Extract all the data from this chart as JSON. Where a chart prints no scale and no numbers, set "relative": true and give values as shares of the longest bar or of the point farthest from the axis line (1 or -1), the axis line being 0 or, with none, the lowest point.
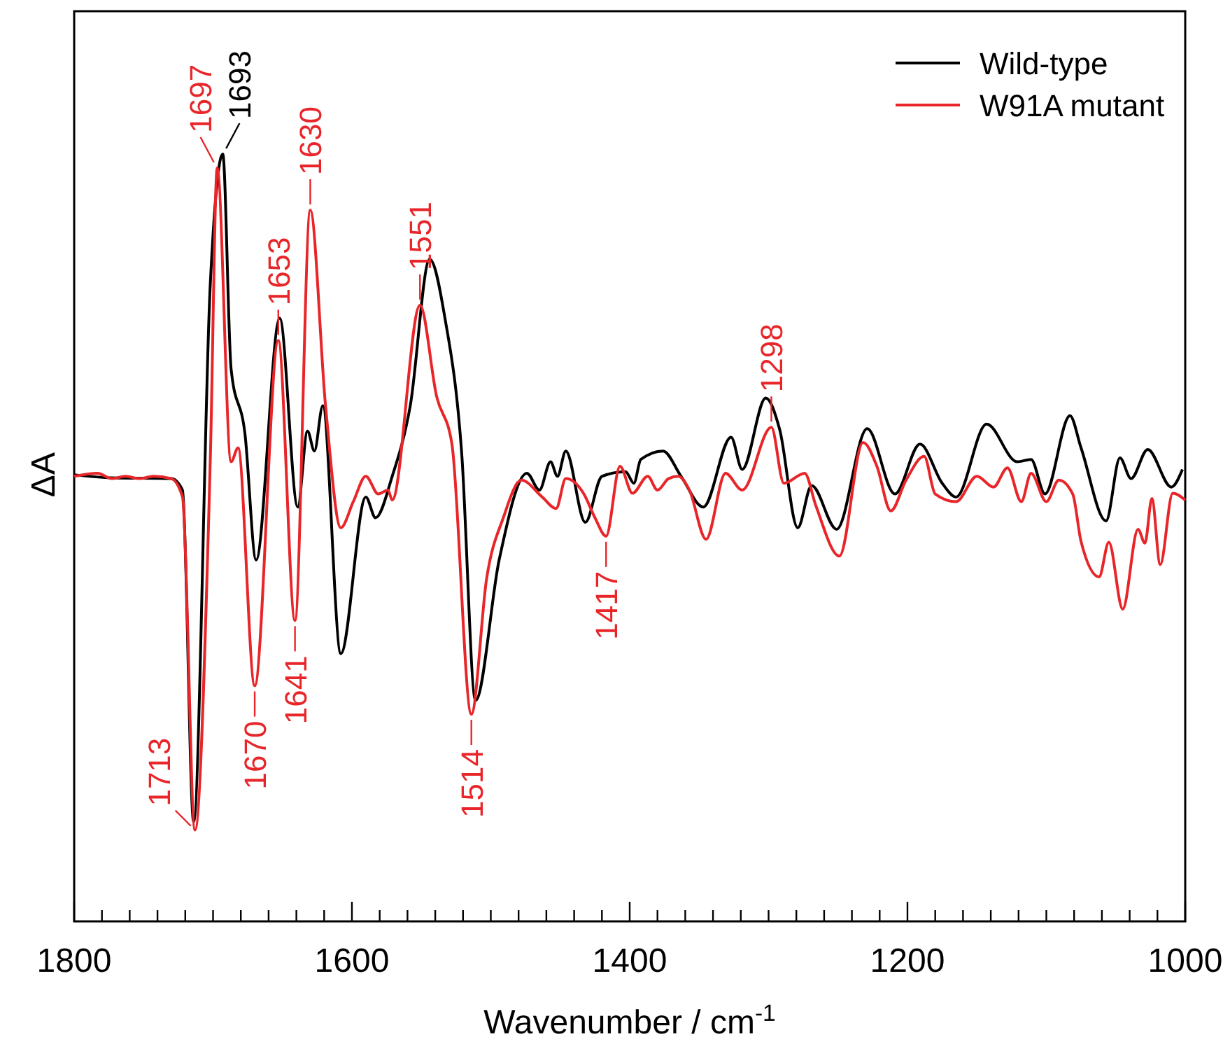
{
  "chart_data": {
    "type": "line",
    "relative": true,
    "xlabel": "Wavenumber / cm$^{-1}$",
    "ylabel": "ΔA",
    "legend": "top right",
    "xlim": [
      1800,
      1000
    ],
    "xticks": [
      1800,
      {
        "value": 1780,
        "label": null
      },
      {
        "value": 1760,
        "label": null
      },
      {
        "value": 1740,
        "label": null
      },
      {
        "value": 1720,
        "label": null
      },
      {
        "value": 1700,
        "label": null
      },
      {
        "value": 1680,
        "label": null
      },
      {
        "value": 1660,
        "label": null
      },
      {
        "value": 1640,
        "label": null
      },
      {
        "value": 1620,
        "label": null
      },
      1600,
      {
        "value": 1580,
        "label": null
      },
      {
        "value": 1560,
        "label": null
      },
      {
        "value": 1540,
        "label": null
      },
      {
        "value": 1520,
        "label": null
      },
      {
        "value": 1500,
        "label": null
      },
      {
        "value": 1480,
        "label": null
      },
      {
        "value": 1460,
        "label": null
      },
      {
        "value": 1440,
        "label": null
      },
      {
        "value": 1420,
        "label": null
      },
      1400,
      {
        "value": 1380,
        "label": null
      },
      {
        "value": 1360,
        "label": null
      },
      {
        "value": 1340,
        "label": null
      },
      {
        "value": 1320,
        "label": null
      },
      {
        "value": 1300,
        "label": null
      },
      {
        "value": 1280,
        "label": null
      },
      {
        "value": 1260,
        "label": null
      },
      {
        "value": 1240,
        "label": null
      },
      {
        "value": 1220,
        "label": null
      },
      1200,
      {
        "value": 1180,
        "label": null
      },
      {
        "value": 1160,
        "label": null
      },
      {
        "value": 1140,
        "label": null
      },
      {
        "value": 1120,
        "label": null
      },
      {
        "value": 1100,
        "label": null
      },
      {
        "value": 1080,
        "label": null
      },
      {
        "value": 1060,
        "label": null
      },
      {
        "value": 1040,
        "label": null
      },
      {
        "value": 1020,
        "label": null
      },
      1000
    ],
    "series": [
      {
        "name": "Wild-type",
        "color": "#000000",
        "x": [
          1800,
          1773,
          1730,
          1722,
          1714,
          1702,
          1693,
          1687,
          1677,
          1669,
          1652,
          1639,
          1632,
          1627,
          1621,
          1608,
          1590,
          1583,
          1571,
          1558,
          1544,
          1533,
          1521,
          1511,
          1494,
          1474,
          1465,
          1457,
          1452,
          1446,
          1432,
          1420,
          1403,
          1397,
          1392,
          1376,
          1363,
          1347,
          1327,
          1319,
          1302,
          1292,
          1279,
          1269,
          1251,
          1229,
          1209,
          1191,
          1175,
          1165,
          1143,
          1121,
          1111,
          1101,
          1083,
          1075,
          1057,
          1047,
          1039,
          1027,
          1010,
          1002
        ],
        "values": [
          0.582,
          0.578,
          0.577,
          0.562,
          0.13,
          0.83,
          1.0,
          0.72,
          0.635,
          0.471,
          0.786,
          0.54,
          0.639,
          0.613,
          0.672,
          0.349,
          0.553,
          0.526,
          0.58,
          0.672,
          0.863,
          0.786,
          0.611,
          0.288,
          0.471,
          0.584,
          0.562,
          0.599,
          0.58,
          0.613,
          0.52,
          0.58,
          0.586,
          0.571,
          0.602,
          0.613,
          0.58,
          0.54,
          0.631,
          0.589,
          0.682,
          0.641,
          0.513,
          0.568,
          0.511,
          0.642,
          0.557,
          0.622,
          0.571,
          0.553,
          0.648,
          0.599,
          0.602,
          0.557,
          0.659,
          0.617,
          0.522,
          0.604,
          0.577,
          0.615,
          0.566,
          0.589
        ]
      },
      {
        "name": "W91A mutant",
        "color": "#e8262a",
        "x": [
          1800,
          1783,
          1773,
          1763,
          1753,
          1743,
          1730,
          1722,
          1713,
          1702,
          1697,
          1687,
          1682,
          1670,
          1653,
          1641,
          1630,
          1619,
          1608,
          1599,
          1590,
          1581,
          1574,
          1571,
          1551,
          1539,
          1528,
          1514,
          1503,
          1491,
          1478,
          1463,
          1453,
          1446,
          1433,
          1425,
          1417,
          1407,
          1398,
          1387,
          1380,
          1372,
          1365,
          1357,
          1345,
          1331,
          1319,
          1298,
          1289,
          1274,
          1266,
          1249,
          1232,
          1222,
          1212,
          1201,
          1188,
          1180,
          1165,
          1150,
          1138,
          1128,
          1118,
          1111,
          1100,
          1091,
          1081,
          1075,
          1062,
          1055,
          1045,
          1034,
          1029,
          1024,
          1018,
          1009,
          1000
        ],
        "values": [
          0.58,
          0.584,
          0.577,
          0.58,
          0.577,
          0.58,
          0.577,
          0.553,
          0.119,
          0.6,
          0.982,
          0.599,
          0.617,
          0.307,
          0.757,
          0.392,
          0.927,
          0.672,
          0.513,
          0.547,
          0.58,
          0.557,
          0.562,
          0.549,
          0.803,
          0.684,
          0.622,
          0.27,
          0.447,
          0.526,
          0.575,
          0.553,
          0.538,
          0.577,
          0.557,
          0.526,
          0.502,
          0.593,
          0.558,
          0.58,
          0.562,
          0.577,
          0.58,
          0.562,
          0.498,
          0.584,
          0.562,
          0.644,
          0.571,
          0.584,
          0.542,
          0.476,
          0.624,
          0.593,
          0.535,
          0.575,
          0.606,
          0.557,
          0.547,
          0.58,
          0.566,
          0.591,
          0.547,
          0.584,
          0.547,
          0.575,
          0.557,
          0.495,
          0.449,
          0.494,
          0.407,
          0.511,
          0.493,
          0.551,
          0.465,
          0.558,
          0.549
        ]
      }
    ],
    "annotations": [
      {
        "text": "1693",
        "x": 1693,
        "y": 1.0
      },
      {
        "text": "1697",
        "x": 1697,
        "y": 0.982
      },
      {
        "text": "1653",
        "x": 1653,
        "y": 0.757
      },
      {
        "text": "1630",
        "x": 1630,
        "y": 0.927
      },
      {
        "text": "1551",
        "x": 1551,
        "y": 0.803
      },
      {
        "text": "1298",
        "x": 1298,
        "y": 0.644
      },
      {
        "text": "1713",
        "x": 1713,
        "y": 0.119
      },
      {
        "text": "1670",
        "x": 1670,
        "y": 0.307
      },
      {
        "text": "1641",
        "x": 1641,
        "y": 0.392
      },
      {
        "text": "1514",
        "x": 1514,
        "y": 0.27
      },
      {
        "text": "1417",
        "x": 1417,
        "y": 0.502
      }
    ]
  }
}
